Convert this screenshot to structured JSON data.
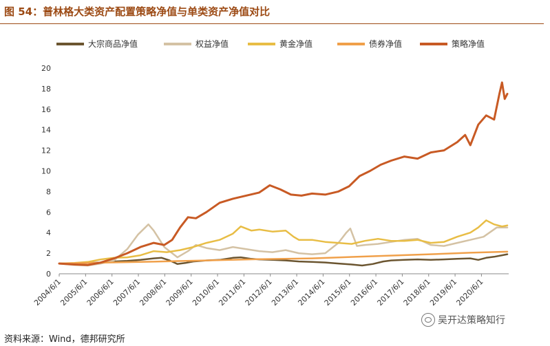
{
  "title": "图 54：普林格大类资产配置策略净值与单类资产净值对比",
  "source": "资料来源：Wind，德邦研究所",
  "watermark": "吴开达策略知行",
  "watermark_icon": "wechat-icon",
  "chart_data": {
    "type": "line",
    "title": "普林格大类资产配置策略净值与单类资产净值对比",
    "xlabel": "",
    "ylabel": "",
    "ylim": [
      0,
      20
    ],
    "yticks": [
      0,
      2,
      4,
      6,
      8,
      10,
      12,
      14,
      16,
      18,
      20
    ],
    "categories": [
      "2004/6/1",
      "2005/6/1",
      "2006/6/1",
      "2007/6/1",
      "2008/6/1",
      "2009/6/1",
      "2010/6/1",
      "2011/6/1",
      "2012/6/1",
      "2013/6/1",
      "2014/6/1",
      "2015/6/1",
      "2016/6/1",
      "2017/6/1",
      "2018/6/1",
      "2019/6/1",
      "2020/6/1"
    ],
    "legend_position": "top",
    "grid": false,
    "series": [
      {
        "name": "大宗商品净值",
        "color": "#6b5530",
        "x": [
          2004.42,
          2005.0,
          2005.5,
          2006.0,
          2006.5,
          2007.0,
          2007.5,
          2008.0,
          2008.3,
          2008.6,
          2008.9,
          2009.2,
          2009.5,
          2010.0,
          2010.5,
          2011.0,
          2011.3,
          2011.7,
          2012.0,
          2012.5,
          2013.0,
          2013.5,
          2014.0,
          2014.5,
          2015.0,
          2015.5,
          2015.9,
          2016.3,
          2016.7,
          2017.0,
          2017.5,
          2018.0,
          2018.5,
          2019.0,
          2019.5,
          2020.0,
          2020.3,
          2020.6,
          2020.9,
          2021.2,
          2021.4
        ],
        "values": [
          1.0,
          1.0,
          1.05,
          1.1,
          1.2,
          1.25,
          1.35,
          1.5,
          1.55,
          1.3,
          0.95,
          1.05,
          1.2,
          1.3,
          1.35,
          1.55,
          1.6,
          1.45,
          1.4,
          1.35,
          1.3,
          1.2,
          1.15,
          1.1,
          1.0,
          0.9,
          0.8,
          0.95,
          1.2,
          1.3,
          1.35,
          1.4,
          1.35,
          1.4,
          1.45,
          1.5,
          1.35,
          1.55,
          1.65,
          1.8,
          1.9
        ]
      },
      {
        "name": "权益净值",
        "color": "#d4c2a4",
        "x": [
          2004.42,
          2005.0,
          2005.5,
          2006.0,
          2006.5,
          2007.0,
          2007.4,
          2007.8,
          2008.0,
          2008.4,
          2008.9,
          2009.3,
          2009.6,
          2010.0,
          2010.5,
          2011.0,
          2011.5,
          2012.0,
          2012.5,
          2013.0,
          2013.5,
          2014.0,
          2014.5,
          2015.0,
          2015.3,
          2015.45,
          2015.7,
          2016.0,
          2016.5,
          2017.0,
          2017.5,
          2018.0,
          2018.5,
          2019.0,
          2019.5,
          2020.0,
          2020.5,
          2021.0,
          2021.4
        ],
        "values": [
          1.0,
          0.85,
          0.8,
          1.0,
          1.3,
          2.4,
          3.8,
          4.8,
          4.2,
          2.6,
          1.6,
          2.2,
          2.8,
          2.5,
          2.3,
          2.6,
          2.4,
          2.2,
          2.1,
          2.3,
          2.0,
          1.9,
          2.0,
          3.0,
          4.0,
          4.4,
          2.7,
          2.8,
          2.9,
          3.1,
          3.3,
          3.4,
          2.8,
          2.7,
          3.0,
          3.3,
          3.6,
          4.5,
          4.5
        ]
      },
      {
        "name": "黄金净值",
        "color": "#e8bd45",
        "x": [
          2004.42,
          2005.0,
          2005.5,
          2006.0,
          2006.5,
          2007.0,
          2007.5,
          2008.0,
          2008.5,
          2009.0,
          2009.5,
          2010.0,
          2010.5,
          2011.0,
          2011.3,
          2011.7,
          2012.0,
          2012.5,
          2013.0,
          2013.3,
          2013.5,
          2014.0,
          2014.5,
          2015.0,
          2015.5,
          2016.0,
          2016.5,
          2017.0,
          2017.5,
          2018.0,
          2018.5,
          2019.0,
          2019.5,
          2020.0,
          2020.3,
          2020.6,
          2020.9,
          2021.2,
          2021.4
        ],
        "values": [
          1.0,
          1.05,
          1.15,
          1.4,
          1.55,
          1.6,
          1.8,
          2.2,
          2.1,
          2.3,
          2.6,
          3.0,
          3.3,
          3.9,
          4.6,
          4.2,
          4.3,
          4.1,
          4.2,
          3.6,
          3.3,
          3.3,
          3.1,
          3.0,
          2.9,
          3.2,
          3.4,
          3.2,
          3.2,
          3.3,
          3.0,
          3.1,
          3.6,
          4.0,
          4.5,
          5.2,
          4.8,
          4.6,
          4.7
        ]
      },
      {
        "name": "债券净值",
        "color": "#f0a04a",
        "x": [
          2004.42,
          2006.0,
          2008.0,
          2010.0,
          2012.0,
          2014.0,
          2016.0,
          2018.0,
          2020.0,
          2021.4
        ],
        "values": [
          1.0,
          1.08,
          1.18,
          1.3,
          1.42,
          1.5,
          1.68,
          1.85,
          2.05,
          2.15
        ]
      },
      {
        "name": "策略净值",
        "color": "#c85a24",
        "x": [
          2004.42,
          2005.0,
          2005.5,
          2006.0,
          2006.5,
          2007.0,
          2007.5,
          2008.0,
          2008.4,
          2008.7,
          2009.0,
          2009.3,
          2009.6,
          2010.0,
          2010.5,
          2011.0,
          2011.5,
          2012.0,
          2012.4,
          2012.8,
          2013.2,
          2013.6,
          2014.0,
          2014.5,
          2015.0,
          2015.4,
          2015.8,
          2016.2,
          2016.6,
          2017.0,
          2017.5,
          2018.0,
          2018.5,
          2019.0,
          2019.5,
          2019.8,
          2020.0,
          2020.3,
          2020.6,
          2020.9,
          2021.1,
          2021.2,
          2021.3,
          2021.4
        ],
        "values": [
          1.0,
          0.9,
          0.85,
          1.1,
          1.5,
          2.0,
          2.6,
          3.0,
          2.8,
          3.3,
          4.5,
          5.5,
          5.4,
          6.0,
          6.9,
          7.3,
          7.6,
          7.9,
          8.6,
          8.2,
          7.7,
          7.6,
          7.8,
          7.7,
          8.0,
          8.5,
          9.5,
          10.0,
          10.6,
          11.0,
          11.4,
          11.2,
          11.8,
          12.0,
          12.8,
          13.5,
          12.5,
          14.5,
          15.4,
          15.0,
          17.5,
          18.6,
          17.0,
          17.5
        ]
      }
    ]
  }
}
